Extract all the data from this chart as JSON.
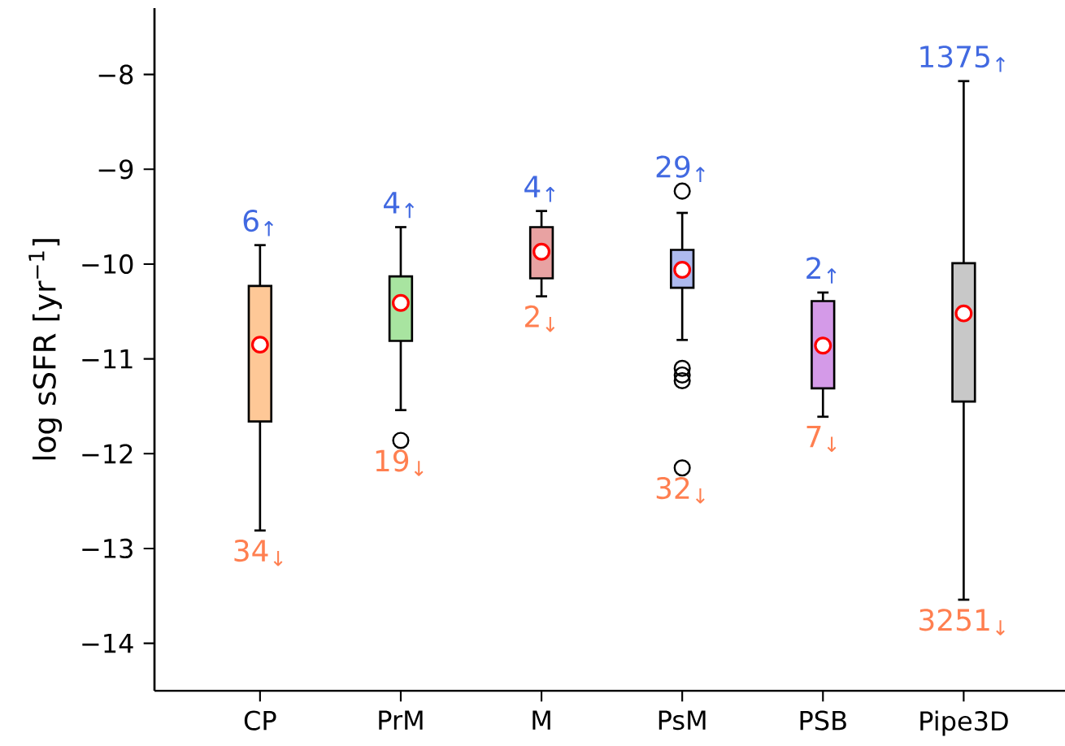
{
  "chart_data": {
    "type": "box",
    "ylabel": "log sSFR  [yr$^{−1}$]",
    "categories": [
      "CP",
      "PrM",
      "M",
      "PsM",
      "PSB",
      "Pipe3D"
    ],
    "colors": [
      "#fec897",
      "#a8e4a0",
      "#e8a2a2",
      "#aebaef",
      "#d49ae8",
      "#c8c8c8"
    ],
    "boxes": [
      {
        "low": -12.81,
        "q1": -11.66,
        "median": -10.85,
        "q3": -10.23,
        "high": -9.8
      },
      {
        "low": -11.54,
        "q1": -10.81,
        "median": -10.41,
        "q3": -10.13,
        "high": -9.61,
        "outliers": [
          -11.86
        ]
      },
      {
        "low": -10.34,
        "q1": -10.15,
        "median": -9.87,
        "q3": -9.61,
        "high": -9.44
      },
      {
        "low": -10.8,
        "q1": -10.25,
        "median": -10.06,
        "q3": -9.85,
        "high": -9.46,
        "outliers": [
          -9.23,
          -11.1,
          -11.17,
          -11.23,
          -12.15
        ]
      },
      {
        "low": -11.61,
        "q1": -11.31,
        "median": -10.86,
        "q3": -10.39,
        "high": -10.3
      },
      {
        "low": -13.54,
        "q1": -11.45,
        "median": -10.52,
        "q3": -9.99,
        "high": -8.07
      }
    ],
    "ylim": [
      -14.5,
      -7.3
    ],
    "yticks": [
      {
        "value": -14,
        "label": "−14"
      },
      {
        "value": -13,
        "label": "−13"
      },
      {
        "value": -12,
        "label": "−12"
      },
      {
        "value": -11,
        "label": "−11"
      },
      {
        "value": -10,
        "label": "−10"
      },
      {
        "value": -9,
        "label": "−9"
      },
      {
        "value": -8,
        "label": "−8"
      }
    ],
    "annotations": [
      "6$_{↑}$",
      "34$_{↓}$",
      "4$_{↑}$",
      "19$_{↓}$",
      "4$_{↑}$",
      "2$_{↓}$",
      "29$_{↑}$",
      "32$_{↓}$",
      "2$_{↑}$",
      "7$_{↓}$",
      "1375$_{↑}$",
      "3251$_{↓}$"
    ]
  }
}
